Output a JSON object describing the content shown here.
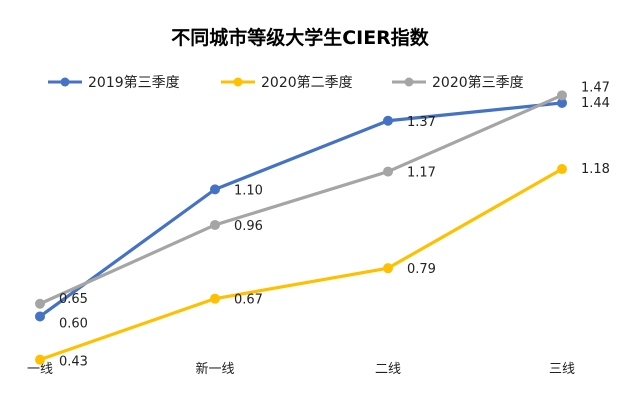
{
  "chart_data": {
    "type": "line",
    "title": "不同城市等级大学生CIER指数",
    "categories": [
      "一线",
      "新一线",
      "二线",
      "三线"
    ],
    "series": [
      {
        "name": "2019第三季度",
        "values": [
          0.6,
          1.1,
          1.37,
          1.44
        ],
        "color": "#4472C4"
      },
      {
        "name": "2020第二季度",
        "values": [
          0.43,
          0.67,
          0.79,
          1.18
        ],
        "color": "#FFC000"
      },
      {
        "name": "2020第三季度",
        "values": [
          0.65,
          0.96,
          1.17,
          1.47
        ],
        "color": "#A5A5A5"
      }
    ],
    "ylim": [
      0.35,
      1.55
    ],
    "legend_position": "top",
    "grid": false,
    "xlabel": "",
    "ylabel": ""
  }
}
